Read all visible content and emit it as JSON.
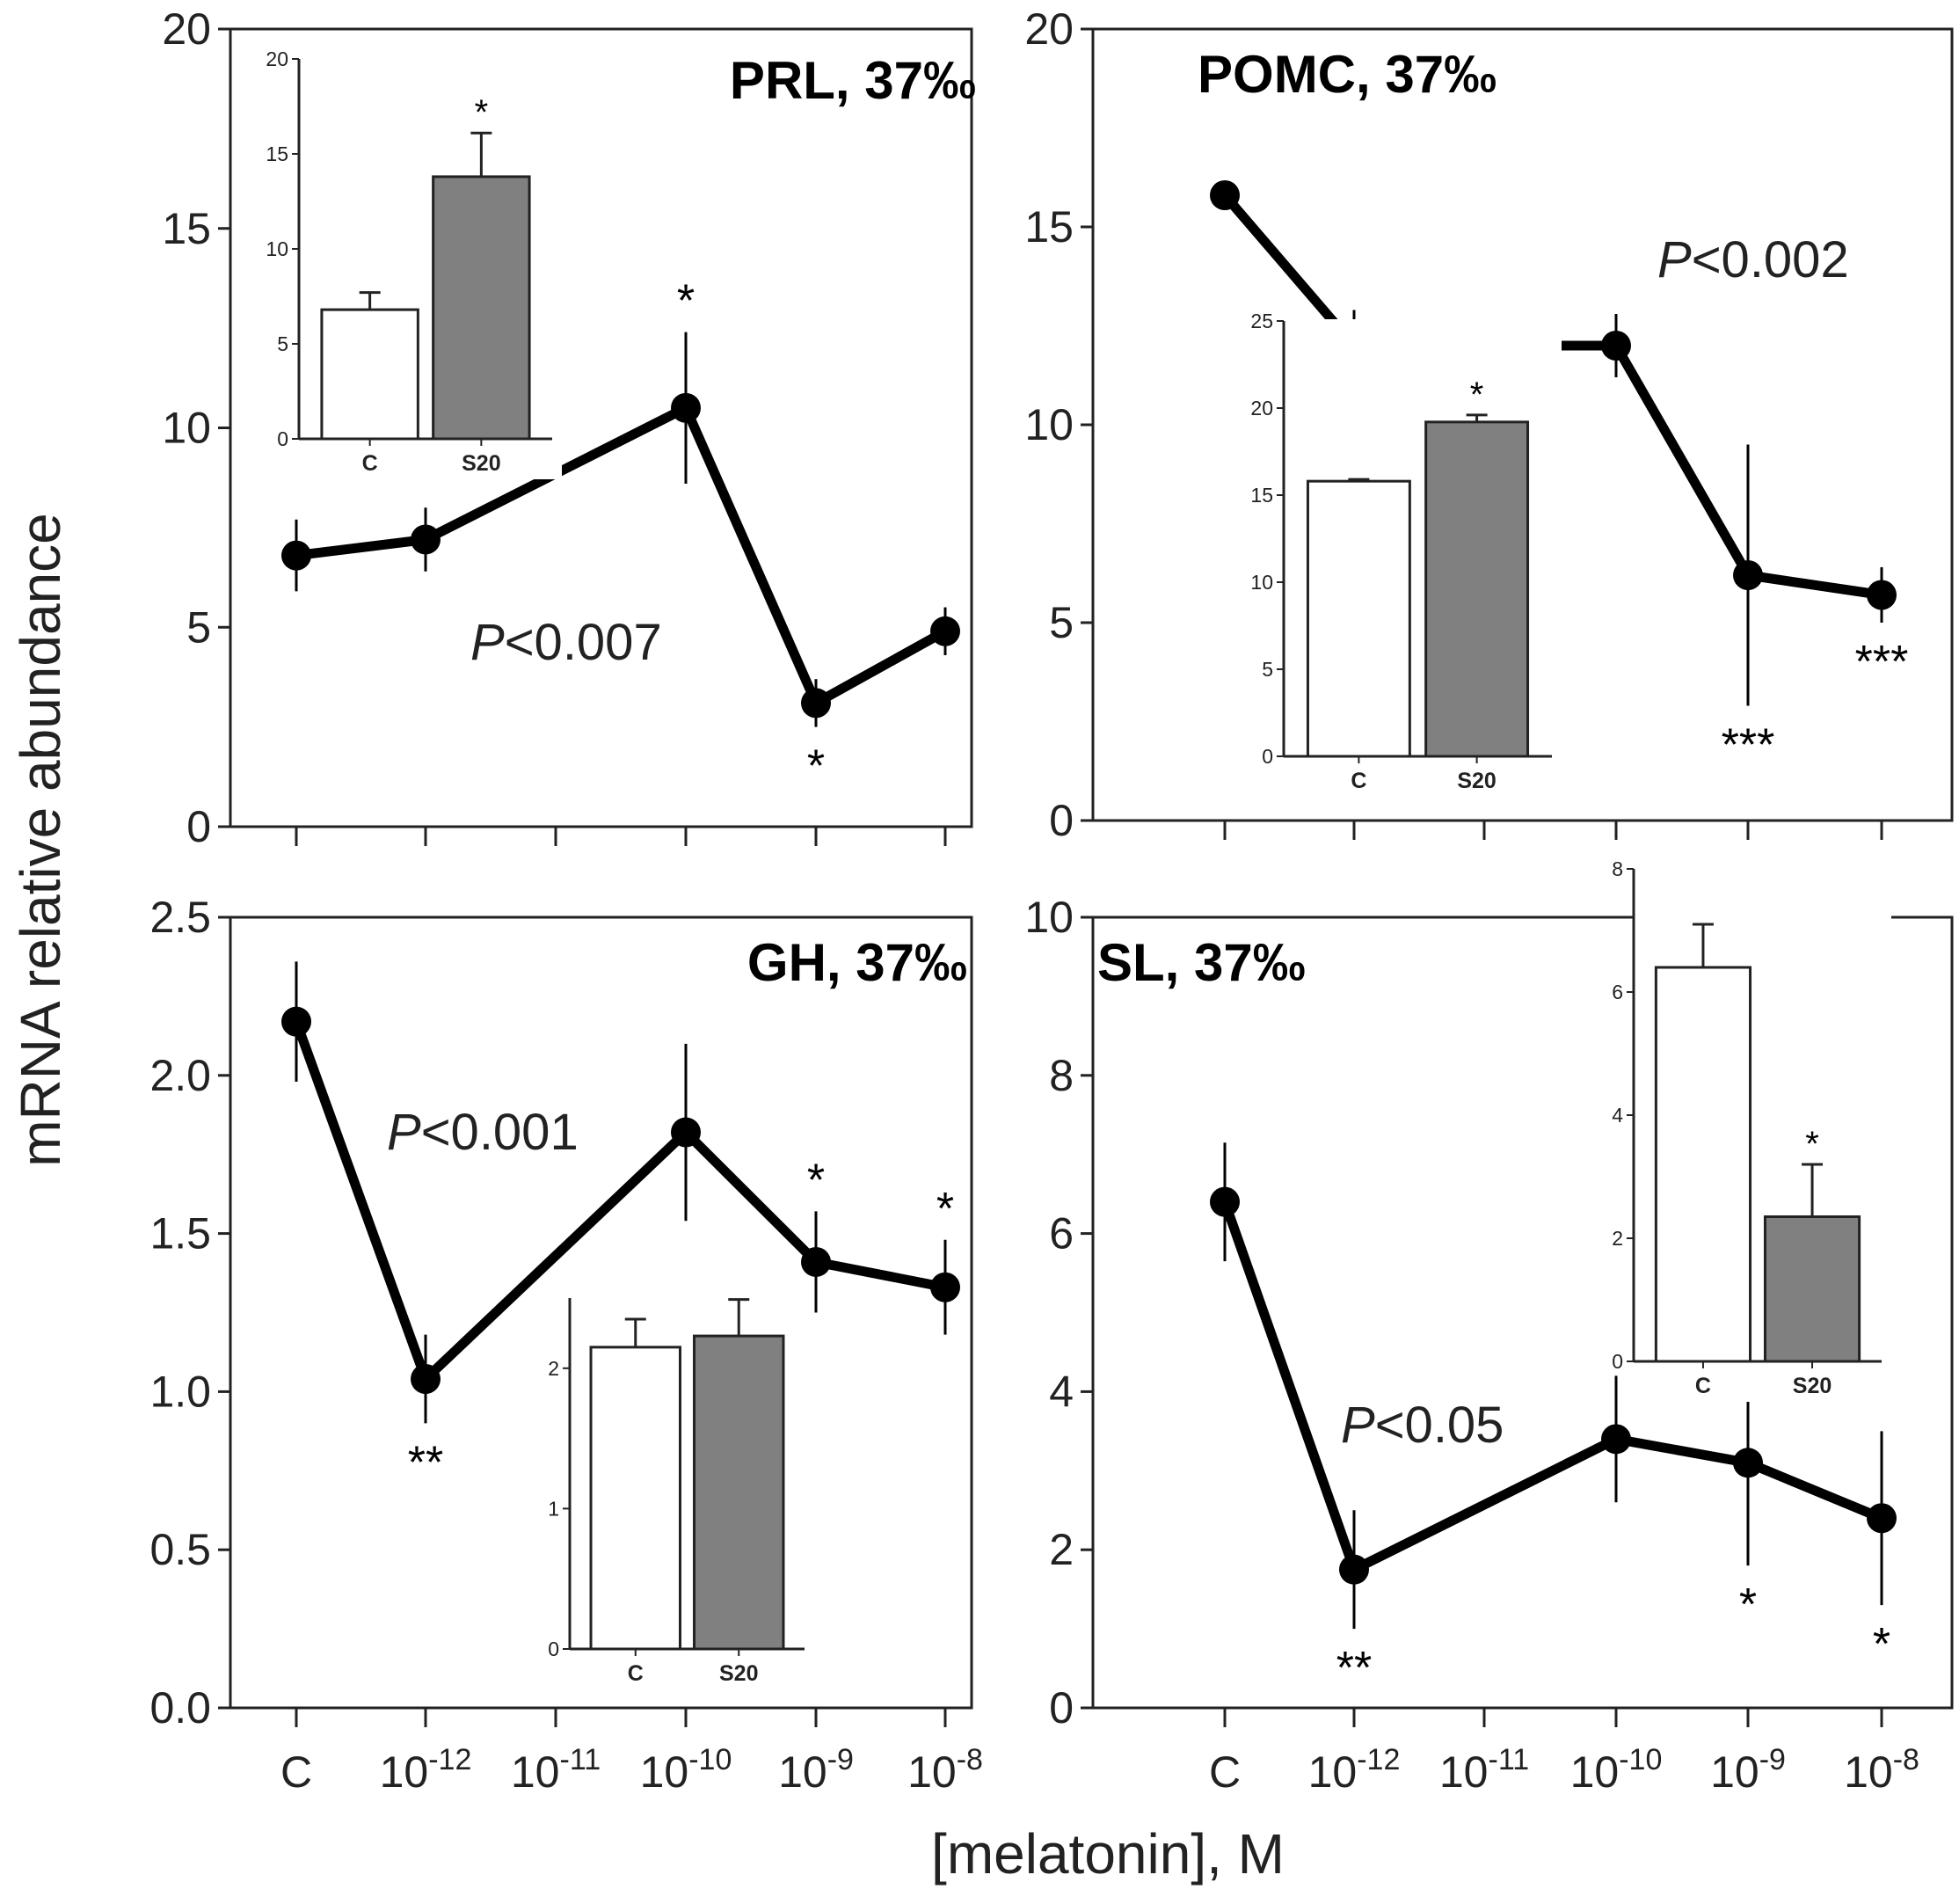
{
  "figure": {
    "ylabel": "mRNA relative abundance",
    "xlabel": "[melatonin], M",
    "x_ticks": [
      {
        "base": "C",
        "exp": ""
      },
      {
        "base": "10",
        "exp": "-12"
      },
      {
        "base": "10",
        "exp": "-11"
      },
      {
        "base": "10",
        "exp": "-10"
      },
      {
        "base": "10",
        "exp": "-9"
      },
      {
        "base": "10",
        "exp": "-8"
      }
    ]
  },
  "colors": {
    "line": "#000000",
    "inset_control": "#ffffff",
    "inset_s20": "#808080",
    "axis": "#222222"
  },
  "chart_data": [
    {
      "type": "line",
      "title": "PRL, 37‰",
      "p_value": "<0.007",
      "ylim": [
        0,
        20
      ],
      "yticks": [
        "0",
        "5",
        "10",
        "15",
        "20"
      ],
      "series": [
        {
          "name": "PRL",
          "x": [
            "C",
            "10-12",
            "10-10",
            "10-9",
            "10-8"
          ],
          "values": [
            6.8,
            7.2,
            10.5,
            3.1,
            4.9
          ],
          "error": [
            0.9,
            0.8,
            1.9,
            0.6,
            0.6
          ],
          "significance": [
            {
              "label": "*",
              "x": "10-10",
              "pos": "above"
            },
            {
              "label": "*",
              "x": "10-9",
              "pos": "below"
            }
          ]
        }
      ],
      "inset": {
        "type": "bar",
        "categories": [
          "C",
          "S20"
        ],
        "values": [
          6.8,
          13.8
        ],
        "error": [
          0.9,
          2.3
        ],
        "ylim": [
          0,
          20
        ],
        "yticks": [
          "0",
          "5",
          "10",
          "15",
          "20"
        ],
        "significance": [
          "",
          "*"
        ]
      }
    },
    {
      "type": "line",
      "title": "POMC, 37‰",
      "p_value": "<0.002",
      "ylim": [
        0,
        20
      ],
      "yticks": [
        "0",
        "5",
        "10",
        "15",
        "20"
      ],
      "series": [
        {
          "name": "POMC",
          "x": [
            "C",
            "10-12",
            "10-10",
            "10-9",
            "10-8"
          ],
          "values": [
            15.8,
            12.0,
            12.0,
            6.2,
            5.7
          ],
          "error": [
            0,
            0.9,
            0.8,
            3.3,
            0.7
          ],
          "significance": [
            {
              "label": "***",
              "x": "10-9",
              "pos": "below"
            },
            {
              "label": "***",
              "x": "10-8",
              "pos": "below"
            }
          ]
        }
      ],
      "inset": {
        "type": "bar",
        "categories": [
          "C",
          "S20"
        ],
        "values": [
          15.8,
          19.2
        ],
        "error": [
          0.1,
          0.4
        ],
        "ylim": [
          0,
          25
        ],
        "yticks": [
          "0",
          "5",
          "10",
          "15",
          "20",
          "25"
        ],
        "significance": [
          "",
          "*"
        ]
      }
    },
    {
      "type": "line",
      "title": "GH, 37‰",
      "p_value": "<0.001",
      "ylim": [
        0,
        2.5
      ],
      "yticks": [
        "0.0",
        "0.5",
        "1.0",
        "1.5",
        "2.0",
        "2.5"
      ],
      "series": [
        {
          "name": "GH",
          "x": [
            "C",
            "10-12",
            "10-10",
            "10-9",
            "10-8"
          ],
          "values": [
            2.17,
            1.04,
            1.82,
            1.41,
            1.33
          ],
          "error": [
            0.19,
            0.14,
            0.28,
            0.16,
            0.15
          ],
          "significance": [
            {
              "label": "**",
              "x": "10-12",
              "pos": "below"
            },
            {
              "label": "*",
              "x": "10-9",
              "pos": "above"
            },
            {
              "label": "*",
              "x": "10-8",
              "pos": "above"
            }
          ]
        }
      ],
      "inset": {
        "type": "bar",
        "categories": [
          "C",
          "S20"
        ],
        "values": [
          2.15,
          2.23
        ],
        "error": [
          0.2,
          0.26
        ],
        "ylim": [
          0,
          2.5
        ],
        "yticks": [
          "0",
          "1",
          "2"
        ],
        "significance": [
          "",
          ""
        ]
      }
    },
    {
      "type": "line",
      "title": "SL, 37‰",
      "p_value": "<0.05",
      "ylim": [
        0,
        10
      ],
      "yticks": [
        "0",
        "2",
        "4",
        "6",
        "8",
        "10"
      ],
      "series": [
        {
          "name": "SL",
          "x": [
            "C",
            "10-12",
            "10-10",
            "10-9",
            "10-8"
          ],
          "values": [
            6.4,
            1.75,
            3.4,
            3.1,
            2.4
          ],
          "error": [
            0.75,
            0.75,
            0.8,
            1.3,
            1.1
          ],
          "significance": [
            {
              "label": "**",
              "x": "10-12",
              "pos": "below"
            },
            {
              "label": "*",
              "x": "10-9",
              "pos": "below"
            },
            {
              "label": "*",
              "x": "10-8",
              "pos": "below"
            }
          ]
        }
      ],
      "inset": {
        "type": "bar",
        "categories": [
          "C",
          "S20"
        ],
        "values": [
          6.4,
          2.35
        ],
        "error": [
          0.7,
          0.85
        ],
        "ylim": [
          0,
          8
        ],
        "yticks": [
          "0",
          "2",
          "4",
          "6",
          "8"
        ],
        "significance": [
          "",
          "*"
        ]
      }
    }
  ]
}
